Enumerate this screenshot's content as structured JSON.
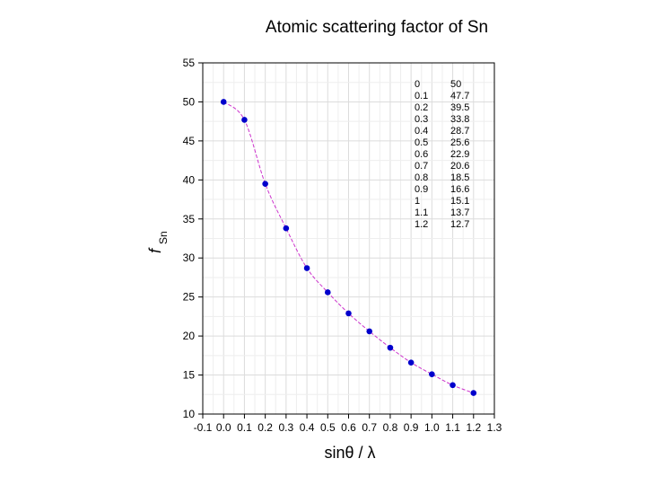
{
  "chart_data": {
    "type": "scatter",
    "title": "Atomic scattering factor of Sn",
    "xlabel": "sinθ / λ",
    "ylabel_main": "f",
    "ylabel_sub": "Sn",
    "xlim": [
      -0.1,
      1.3
    ],
    "ylim": [
      10,
      55
    ],
    "xticks": [
      "-0.1",
      "0.0",
      "0.1",
      "0.2",
      "0.3",
      "0.4",
      "0.5",
      "0.6",
      "0.7",
      "0.8",
      "0.9",
      "1.0",
      "1.1",
      "1.2",
      "1.3"
    ],
    "yticks": [
      "10",
      "15",
      "20",
      "25",
      "30",
      "35",
      "40",
      "45",
      "50",
      "55"
    ],
    "grid": true,
    "point_color": "#0000cc",
    "line_color": "#cc33cc",
    "series": [
      {
        "x": [
          0,
          0.1,
          0.2,
          0.3,
          0.4,
          0.5,
          0.6,
          0.7,
          0.8,
          0.9,
          1.0,
          1.1,
          1.2
        ],
        "y": [
          50,
          47.7,
          39.5,
          33.8,
          28.7,
          25.6,
          22.9,
          20.6,
          18.5,
          16.6,
          15.1,
          13.7,
          12.7
        ]
      }
    ],
    "table": [
      [
        "0",
        "50"
      ],
      [
        "0.1",
        "47.7"
      ],
      [
        "0.2",
        "39.5"
      ],
      [
        "0.3",
        "33.8"
      ],
      [
        "0.4",
        "28.7"
      ],
      [
        "0.5",
        "25.6"
      ],
      [
        "0.6",
        "22.9"
      ],
      [
        "0.7",
        "20.6"
      ],
      [
        "0.8",
        "18.5"
      ],
      [
        "0.9",
        "16.6"
      ],
      [
        "1",
        "15.1"
      ],
      [
        "1.1",
        "13.7"
      ],
      [
        "1.2",
        "12.7"
      ]
    ]
  }
}
